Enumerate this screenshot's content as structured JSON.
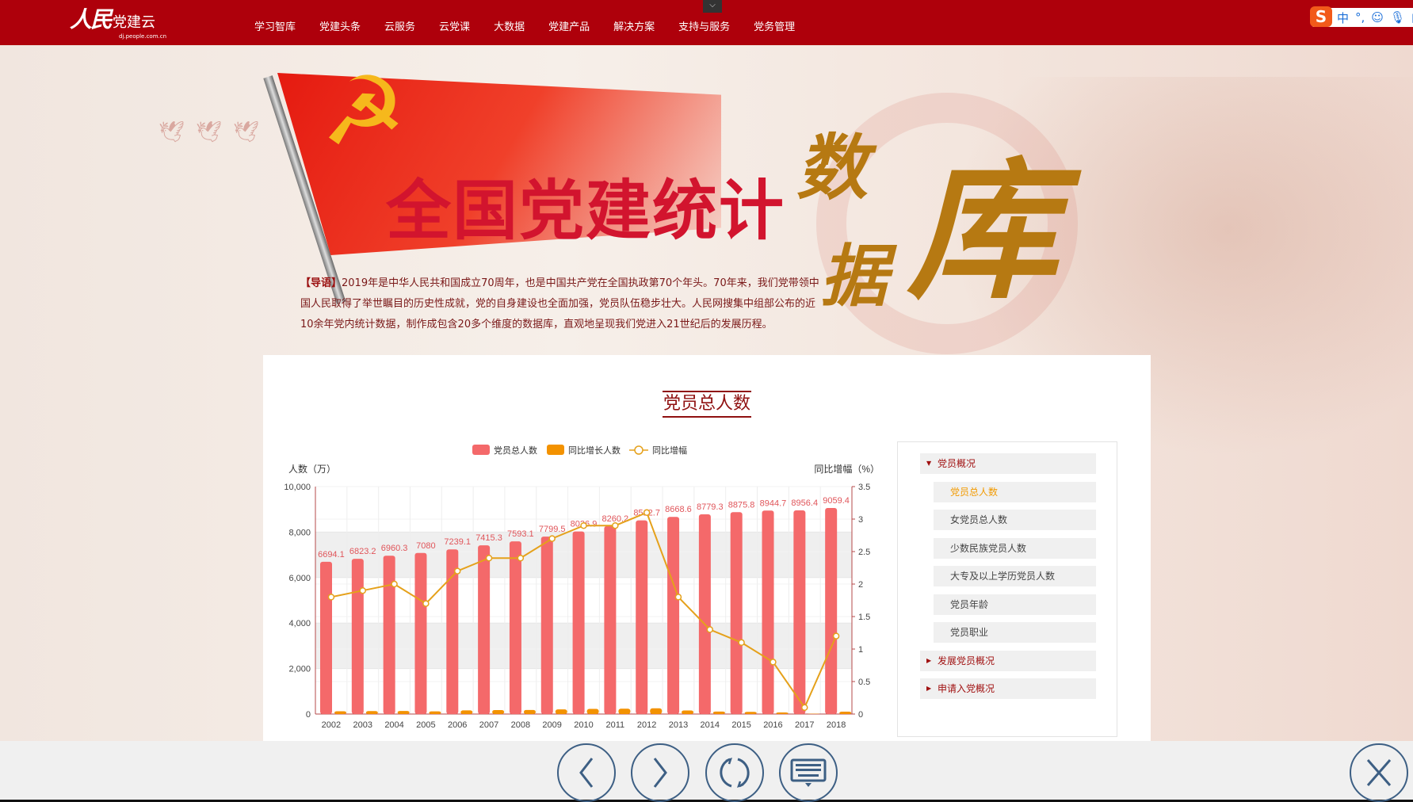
{
  "header": {
    "logo_text": "人民",
    "logo_name": "党建云",
    "logo_sub": "dj.people.com.cn",
    "nav": [
      "学习智库",
      "党建头条",
      "云服务",
      "云党课",
      "大数据",
      "党建产品",
      "解决方案",
      "支持与服务",
      "党务管理"
    ],
    "pull_tab_icon": "chevron-down-icon",
    "ime": {
      "logo": "S",
      "lang": "中",
      "punct": "°,"
    }
  },
  "hero": {
    "title": "全国党建统计",
    "calligraphy": [
      "数",
      "据",
      "库"
    ],
    "intro_tag": "【导语】",
    "intro": "2019年是中华人民共和国成立70周年，也是中国共产党在全国执政第70个年头。70年来，我们党带领中国人民取得了举世瞩目的历史性成就，党的自身建设也全面加强，党员队伍稳步壮大。人民网搜集中组部公布的近10余年党内统计数据，制作成包含20多个维度的数据库，直观地呈现我们党进入21世纪后的发展历程。"
  },
  "panel": {
    "title": "党员总人数"
  },
  "chart_data": {
    "type": "bar",
    "categories": [
      "2002",
      "2003",
      "2004",
      "2005",
      "2006",
      "2007",
      "2008",
      "2009",
      "2010",
      "2011",
      "2012",
      "2013",
      "2014",
      "2015",
      "2016",
      "2017",
      "2018"
    ],
    "series": [
      {
        "name": "党员总人数",
        "type": "bar",
        "axis": "left",
        "color": "#f4696a",
        "values": [
          6694.1,
          6823.2,
          6960.3,
          7080,
          7239.1,
          7415.3,
          7593.1,
          7799.5,
          8026.9,
          8260.2,
          8512.7,
          8668.6,
          8779.3,
          8875.8,
          8944.7,
          8956.4,
          9059.4
        ],
        "labels": [
          "6694.1",
          "6823.2",
          "6960.3",
          "7080",
          "7239.1",
          "7415.3",
          "7593.1",
          "7799.5",
          "8026.9",
          "8260.2",
          "8512.7",
          "8668.6",
          "8779.3",
          "8875.8",
          "8944.7",
          "8956.4",
          "9059.4"
        ]
      },
      {
        "name": "同比增长人数",
        "type": "bar",
        "axis": "left",
        "color": "#f39200",
        "values": [
          120,
          129.1,
          137.1,
          119.7,
          159.1,
          176.2,
          177.8,
          206.4,
          227.4,
          233.3,
          252.5,
          155.9,
          110.7,
          96.5,
          68.9,
          11.7,
          103
        ]
      },
      {
        "name": "同比增幅",
        "type": "line",
        "axis": "right",
        "color": "#e5a11b",
        "values": [
          1.8,
          1.9,
          2.0,
          1.7,
          2.2,
          2.4,
          2.4,
          2.7,
          2.9,
          2.9,
          3.1,
          1.8,
          1.3,
          1.1,
          0.8,
          0.1,
          1.2
        ]
      }
    ],
    "ylabel": "人数（万）",
    "y2label": "同比增幅（%）",
    "ylim": [
      0,
      10000
    ],
    "yticks": [
      "0",
      "2,000",
      "4,000",
      "6,000",
      "8,000",
      "10,000"
    ],
    "y2lim": [
      0,
      3.5
    ],
    "y2ticks": [
      "0",
      "0.5",
      "1",
      "1.5",
      "2",
      "2.5",
      "3",
      "3.5"
    ],
    "grid": true,
    "legend": "top-center"
  },
  "sidebar": {
    "groups": [
      {
        "label": "党员概况",
        "expanded": true,
        "items": [
          "党员总人数",
          "女党员总人数",
          "少数民族党员人数",
          "大专及以上学历党员人数",
          "党员年龄",
          "党员职业"
        ],
        "active": 0
      },
      {
        "label": "发展党员概况",
        "expanded": false
      },
      {
        "label": "申请入党概况",
        "expanded": false
      }
    ]
  },
  "bottombar": {
    "buttons": [
      "back-icon",
      "forward-icon",
      "refresh-icon",
      "keyboard-icon"
    ],
    "close": "close-icon"
  },
  "colors": {
    "brand": "#ae000b",
    "title": "#d2142e",
    "accent": "#f29a00"
  }
}
